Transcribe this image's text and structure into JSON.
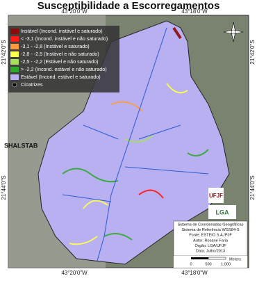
{
  "title": "Susceptibilidade a Escorregamentos",
  "coordinates": {
    "top": [
      "43°20'0\"W",
      "43°18'0\"W"
    ],
    "bottom": [
      "43°20'0\"W",
      "43°18'0\"W"
    ],
    "left": [
      "21°42'0\"S",
      "21°44'0\"S"
    ],
    "right": [
      "21°42'0\"S",
      "21°44'0\"S"
    ]
  },
  "legend": {
    "title": "SHALSTAB",
    "items": [
      {
        "label": "Instável (Incond. instável e saturado)",
        "color": "#8b0a0a"
      },
      {
        "label": "< -3,1 (Incond. instável e não saturado)",
        "color": "#ff1a1a"
      },
      {
        "label": "-3,1 - -2,8 (Instável e saturado)",
        "color": "#ff9a3c"
      },
      {
        "label": "-2,8 - -2,5 (Instável e não saturado)",
        "color": "#ffff4d"
      },
      {
        "label": "-2,5 - -2,2 (Estável e não saturado)",
        "color": "#a8e05a"
      },
      {
        "label": "> -2,2 (Incond. estável e não saturado)",
        "color": "#2faa2f"
      },
      {
        "label": "Estável (Incond. estável e saturado)",
        "color": "#b8b0f0"
      },
      {
        "label": "Cicatrizes",
        "color": "#000000"
      }
    ]
  },
  "info": [
    "Sistema de Coordenadas Geográficas",
    "Sistema de Referência WGS84-S",
    "Fonte: ESTEIO S.A./PJF",
    "Autor: Rosane Faria",
    "Órgão: LGA/UFJF",
    "Data: Julho/2013"
  ],
  "scale_bar": {
    "unit": "Meters",
    "ticks": [
      "0",
      "500",
      "1.000"
    ]
  },
  "logos": [
    "UFJF",
    "LGA"
  ]
}
